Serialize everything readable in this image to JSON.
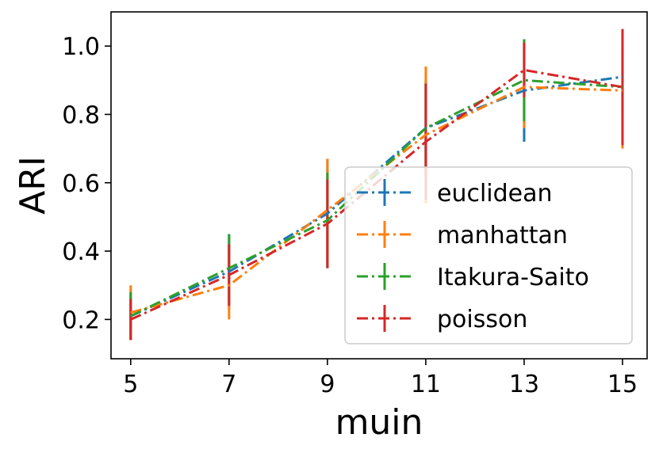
{
  "chart_data": {
    "type": "line",
    "xlabel": "muin",
    "ylabel": "ARI",
    "x": [
      5,
      7,
      9,
      11,
      13,
      15
    ],
    "x_ticks": [
      "5",
      "7",
      "9",
      "11",
      "13",
      "15"
    ],
    "y_ticks": [
      "0.2",
      "0.4",
      "0.6",
      "0.8",
      "1.0"
    ],
    "xlim": [
      4.6,
      15.5
    ],
    "ylim": [
      0.085,
      1.1
    ],
    "grid": false,
    "legend_position": "center-right",
    "series": [
      {
        "name": "euclidean",
        "color": "#1f77b4",
        "values": [
          0.21,
          0.34,
          0.51,
          0.76,
          0.87,
          0.91
        ],
        "errors": [
          0.07,
          0.11,
          0.16,
          0.14,
          0.15,
          0.1
        ]
      },
      {
        "name": "manhattan",
        "color": "#ff7f0e",
        "values": [
          0.22,
          0.3,
          0.52,
          0.74,
          0.88,
          0.87
        ],
        "errors": [
          0.08,
          0.1,
          0.15,
          0.2,
          0.12,
          0.17
        ]
      },
      {
        "name": "Itakura-Saito",
        "color": "#2ca02c",
        "values": [
          0.21,
          0.35,
          0.49,
          0.76,
          0.9,
          0.88
        ],
        "errors": [
          0.07,
          0.1,
          0.14,
          0.13,
          0.12,
          0.1
        ]
      },
      {
        "name": "poisson",
        "color": "#d62728",
        "values": [
          0.2,
          0.33,
          0.48,
          0.72,
          0.93,
          0.88
        ],
        "errors": [
          0.06,
          0.09,
          0.13,
          0.17,
          0.08,
          0.17
        ]
      }
    ]
  }
}
